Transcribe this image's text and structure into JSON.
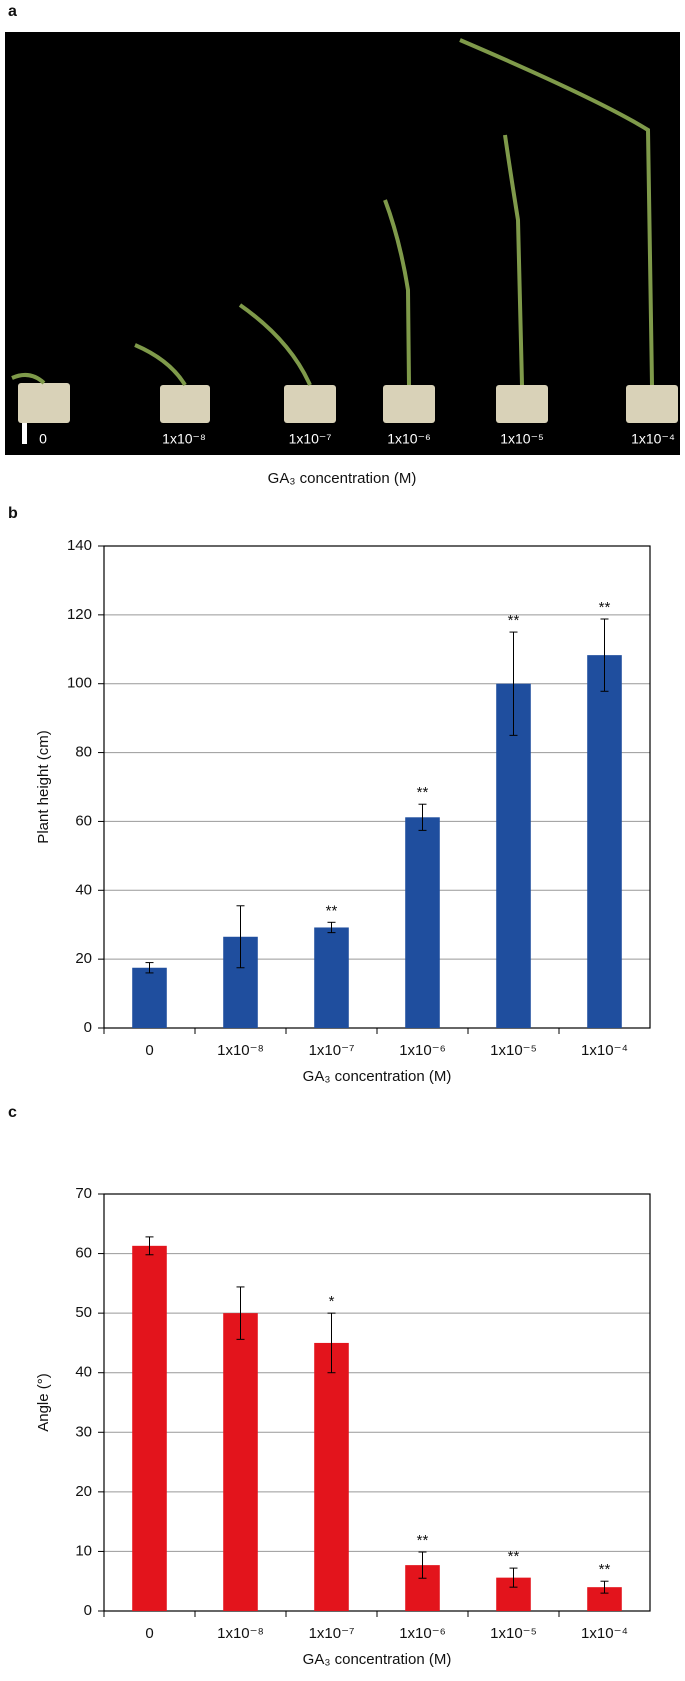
{
  "figure_a": {
    "panel_label": "a",
    "labels": [
      "0",
      "1x10⁻⁸",
      "1x10⁻⁷",
      "1x10⁻⁶",
      "1x10⁻⁵",
      "1x10⁻⁴"
    ],
    "xlabel": "GA₃ concentration (M)"
  },
  "chart_data": [
    {
      "type": "bar",
      "panel_label": "b",
      "xlabel": "GA₃ concentration (M)",
      "ylabel": "Plant height (cm)",
      "categories": [
        "0",
        "1x10⁻⁸",
        "1x10⁻⁷",
        "1x10⁻⁶",
        "1x10⁻⁵",
        "1x10⁻⁴"
      ],
      "values": [
        17.5,
        26.5,
        29.2,
        61.2,
        100,
        108.3
      ],
      "errors": [
        1.5,
        9,
        1.5,
        3.8,
        15,
        10.5
      ],
      "annotations": [
        null,
        null,
        "**",
        "**",
        "**",
        "**"
      ],
      "color": "#1f4e9e",
      "ylim": [
        0,
        140
      ],
      "yticks": [
        0,
        20,
        40,
        60,
        80,
        100,
        120,
        140
      ],
      "grid": true
    },
    {
      "type": "bar",
      "panel_label": "c",
      "xlabel": "GA₃ concentration (M)",
      "ylabel": "Angle (°)",
      "categories": [
        "0",
        "1x10⁻⁸",
        "1x10⁻⁷",
        "1x10⁻⁶",
        "1x10⁻⁵",
        "1x10⁻⁴"
      ],
      "values": [
        61.3,
        50,
        45,
        7.7,
        5.6,
        4
      ],
      "errors": [
        1.5,
        4.4,
        5,
        2.2,
        1.6,
        1
      ],
      "annotations": [
        null,
        null,
        "*",
        "**",
        "**",
        "**"
      ],
      "color": "#e3141c",
      "ylim": [
        0,
        70
      ],
      "yticks": [
        0,
        10,
        20,
        30,
        40,
        50,
        60,
        70
      ],
      "grid": true
    }
  ]
}
